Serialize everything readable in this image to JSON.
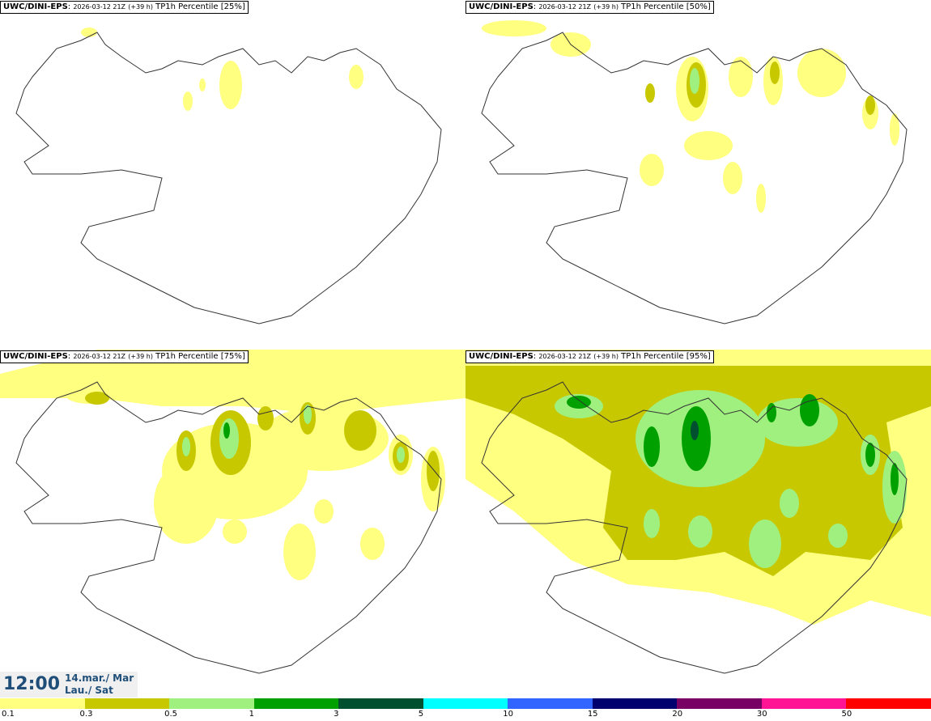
{
  "panels": [
    {
      "model": "UWC/DINI-EPS",
      "run": "2026-03-12 21Z",
      "lead": "(+39 h)",
      "label": "TP1h Percentile [25%]"
    },
    {
      "model": "UWC/DINI-EPS",
      "run": "2026-03-12 21Z",
      "lead": "(+39 h)",
      "label": "TP1h Percentile [50%]"
    },
    {
      "model": "UWC/DINI-EPS",
      "run": "2026-03-12 21Z",
      "lead": "(+39 h)",
      "label": "TP1h Percentile [75%]"
    },
    {
      "model": "UWC/DINI-EPS",
      "run": "2026-03-12 21Z",
      "lead": "(+39 h)",
      "label": "TP1h Percentile [95%]"
    }
  ],
  "time": {
    "clock": "12:00",
    "date_line1": "14.mar./ Mar",
    "date_line2": "Lau./ Sat"
  },
  "legend": {
    "ticks": [
      "0.1",
      "0.3",
      "0.5",
      "1",
      "3",
      "5",
      "10",
      "15",
      "20",
      "30",
      "50"
    ],
    "colors": [
      "#ffff80",
      "#c8c800",
      "#a0f080",
      "#00a000",
      "#005030",
      "#00ffff",
      "#3264ff",
      "#00006e",
      "#780064",
      "#ff1493",
      "#ff0000"
    ]
  }
}
